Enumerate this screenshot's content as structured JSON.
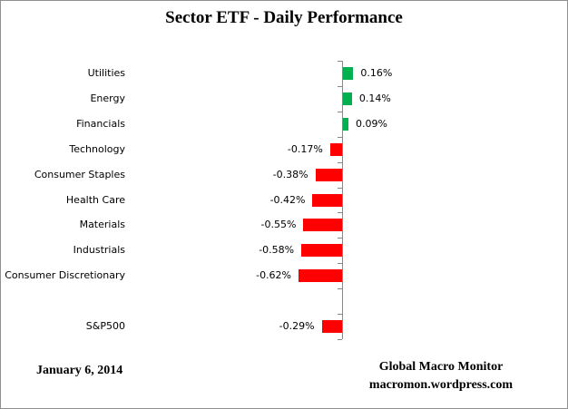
{
  "chart_data": {
    "type": "bar",
    "orientation": "horizontal",
    "title": "Sector ETF - Daily Performance",
    "categories": [
      "Utilities",
      "Energy",
      "Financials",
      "Technology",
      "Consumer Staples",
      "Health Care",
      "Materials",
      "Industrials",
      "Consumer Discretionary",
      "",
      "S&P500"
    ],
    "values": [
      0.16,
      0.14,
      0.09,
      -0.17,
      -0.38,
      -0.42,
      -0.55,
      -0.58,
      -0.62,
      null,
      -0.29
    ],
    "labels": [
      "0.16%",
      "0.14%",
      "0.09%",
      "-0.17%",
      "-0.38%",
      "-0.42%",
      "-0.55%",
      "-0.58%",
      "-0.62%",
      "",
      "-0.29%"
    ],
    "unit": "%",
    "positive_color": "#00B050",
    "negative_color": "#FF0000",
    "axis_color": "#888888",
    "value_axis_labels_visible": false,
    "legend": "none",
    "grid": "off"
  },
  "footer": {
    "date": "January 6, 2014",
    "source_name": "Global Macro Monitor",
    "source_url": "macromon.wordpress.com"
  }
}
